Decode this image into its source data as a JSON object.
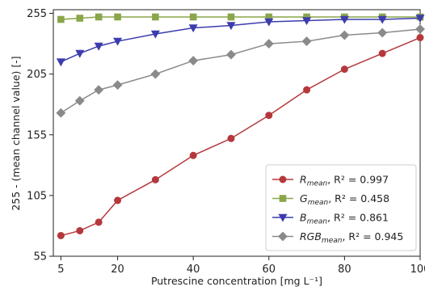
{
  "chart_data": {
    "type": "line",
    "xlabel": "Putrescine concentration [mg L⁻¹]",
    "ylabel": "255 - (mean channel value) [-]",
    "xlim": [
      3,
      100
    ],
    "ylim": [
      55,
      258
    ],
    "x_ticks": [
      5,
      20,
      40,
      60,
      80,
      100
    ],
    "x_tick_labels": [
      "5",
      "20",
      "40",
      "60",
      "80",
      "100"
    ],
    "y_ticks": [
      55,
      105,
      155,
      205,
      255
    ],
    "y_tick_labels": [
      "55",
      "105",
      "155",
      "205",
      "255"
    ],
    "grid": false,
    "legend_position": "lower-right",
    "x": [
      5,
      10,
      15,
      20,
      30,
      40,
      50,
      60,
      70,
      80,
      90,
      100
    ],
    "series": [
      {
        "label_main": "R",
        "label_sub": "mean",
        "label_r2": ", R² = 0.997",
        "color": "#b5383c",
        "marker": "circle",
        "values": [
          72,
          76,
          83,
          101,
          118,
          138,
          152,
          171,
          192,
          209,
          222,
          235
        ]
      },
      {
        "label_main": "G",
        "label_sub": "mean",
        "label_r2": ", R² = 0.458",
        "color": "#8aa64a",
        "marker": "square",
        "values": [
          250,
          251,
          252,
          252,
          252,
          252,
          252,
          252,
          252,
          252,
          252,
          252
        ]
      },
      {
        "label_main": "B",
        "label_sub": "mean",
        "label_r2": ", R² = 0.861",
        "color": "#3c3cae",
        "marker": "triangle-down",
        "values": [
          215,
          222,
          228,
          232,
          238,
          243,
          245,
          248,
          249,
          250,
          250,
          251
        ]
      },
      {
        "label_main": "RGB",
        "label_sub": "mean",
        "label_r2": ", R² = 0.945",
        "color": "#8a8a8a",
        "marker": "diamond",
        "values": [
          173,
          183,
          192,
          196,
          205,
          216,
          221,
          230,
          232,
          237,
          239,
          242
        ]
      }
    ]
  }
}
